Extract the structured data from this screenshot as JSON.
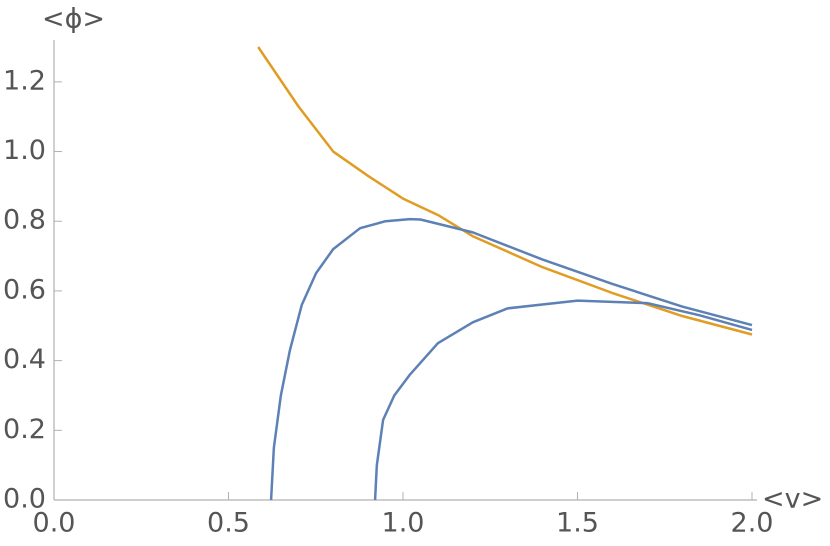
{
  "chart_data": {
    "type": "line",
    "x_label": "<v>",
    "y_label": "<ϕ>",
    "xlim": [
      0,
      2.0
    ],
    "ylim": [
      0,
      1.3
    ],
    "xticks": [
      {
        "value": 0,
        "label": "0.0"
      },
      0.5,
      {
        "value": 1,
        "label": "1.0"
      },
      1.5,
      {
        "value": 2,
        "label": "2.0"
      }
    ],
    "yticks": [
      {
        "value": 0,
        "label": "0.0"
      },
      0.2,
      0.4,
      0.6,
      0.8,
      {
        "value": 1,
        "label": "1.0"
      },
      1.2
    ],
    "series": [
      {
        "color": "#e19c24",
        "x": [
          0.585,
          0.7,
          0.8,
          0.9,
          1.0,
          1.1,
          1.2,
          1.4,
          1.6,
          1.8,
          2.0
        ],
        "values": [
          1.3,
          1.13,
          1.0,
          0.93,
          0.865,
          0.818,
          0.757,
          0.668,
          0.594,
          0.528,
          0.475
        ]
      },
      {
        "color": "#5e81b5",
        "x": [
          0.622,
          0.63,
          0.65,
          0.676,
          0.71,
          0.751,
          0.8,
          0.877,
          0.95,
          1.02,
          1.05,
          1.2,
          1.4,
          1.6,
          1.8,
          2.0
        ],
        "values": [
          0,
          0.15,
          0.3,
          0.43,
          0.56,
          0.651,
          0.72,
          0.78,
          0.8,
          0.806,
          0.805,
          0.768,
          0.69,
          0.62,
          0.555,
          0.502
        ]
      },
      {
        "color": "#5e81b5",
        "x": [
          0.92,
          0.925,
          0.943,
          0.975,
          1.02,
          1.1,
          1.2,
          1.3,
          1.5,
          1.7,
          1.85,
          2.0
        ],
        "values": [
          0,
          0.1,
          0.23,
          0.3,
          0.36,
          0.45,
          0.51,
          0.55,
          0.572,
          0.565,
          0.53,
          0.488
        ]
      }
    ]
  }
}
